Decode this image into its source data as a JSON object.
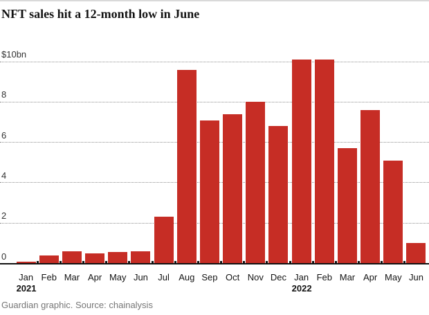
{
  "header": {
    "title": "NFT sales hit a 12-month low in June"
  },
  "footer": {
    "credit": "Guardian graphic. Source: chainalysis"
  },
  "colors": {
    "bar": "#c62d25",
    "baseline": "#121212",
    "gridline": "#8e8e8e",
    "title_text": "#121212",
    "axis_text": "#333333",
    "footer_text": "#767676",
    "top_border": "#d9d9d9"
  },
  "chart_data": {
    "type": "bar",
    "title": "NFT sales hit a 12-month low in June",
    "unit": "$bn",
    "categories": [
      "Jan",
      "Feb",
      "Mar",
      "Apr",
      "May",
      "Jun",
      "Jul",
      "Aug",
      "Sep",
      "Oct",
      "Nov",
      "Dec",
      "Jan",
      "Feb",
      "Mar",
      "Apr",
      "May",
      "Jun"
    ],
    "category_years": [
      "2021",
      "2021",
      "2021",
      "2021",
      "2021",
      "2021",
      "2021",
      "2021",
      "2021",
      "2021",
      "2021",
      "2021",
      "2022",
      "2022",
      "2022",
      "2022",
      "2022",
      "2022"
    ],
    "values": [
      0.1,
      0.4,
      0.6,
      0.5,
      0.55,
      0.6,
      2.3,
      9.6,
      7.1,
      7.4,
      8.0,
      6.8,
      10.1,
      10.1,
      5.7,
      7.6,
      5.1,
      1.0
    ],
    "year_labels": [
      {
        "index": 0,
        "label": "2021"
      },
      {
        "index": 12,
        "label": "2022"
      }
    ],
    "xlabel": "",
    "ylabel": "",
    "ylim": [
      0,
      10
    ],
    "yticks": [
      {
        "value": 0,
        "label": "0"
      },
      {
        "value": 2,
        "label": "2"
      },
      {
        "value": 4,
        "label": "4"
      },
      {
        "value": 6,
        "label": "6"
      },
      {
        "value": 8,
        "label": "8"
      },
      {
        "value": 10,
        "label": "$10bn"
      }
    ],
    "grid": "horizontal-dotted",
    "legend": "none"
  }
}
